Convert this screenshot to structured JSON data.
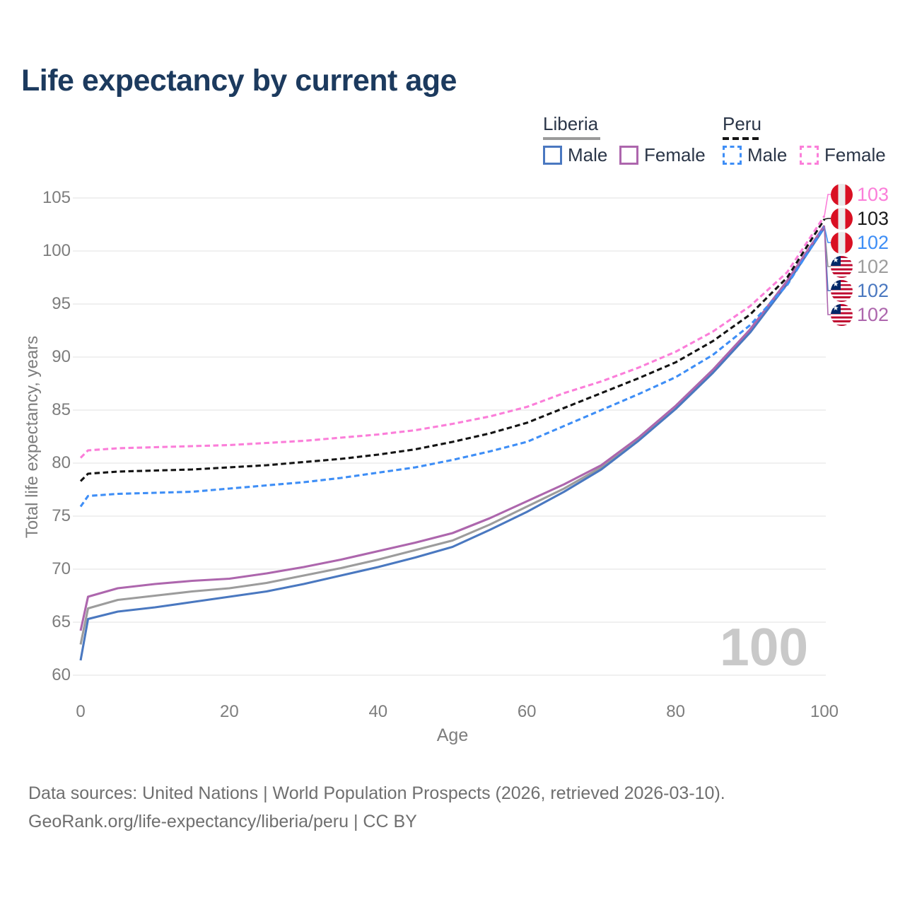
{
  "title": "Life expectancy by current age",
  "legend": {
    "groups": [
      {
        "label": "Liberia",
        "line_style": "solid",
        "underline_color": "#9a9a9a",
        "items": [
          {
            "label": "Male",
            "color": "#4a78c0"
          },
          {
            "label": "Female",
            "color": "#ad66ad"
          }
        ]
      },
      {
        "label": "Peru",
        "line_style": "dashed",
        "underline_color": "#141414",
        "items": [
          {
            "label": "Male",
            "color": "#3e8ef6"
          },
          {
            "label": "Female",
            "color": "#fb7ed9"
          }
        ]
      }
    ]
  },
  "chart_data": {
    "type": "line",
    "title": "Life expectancy by current age",
    "xlabel": "Age",
    "ylabel": "Total life expectancy, years",
    "xlim": [
      0,
      100
    ],
    "ylim": [
      60,
      105
    ],
    "xticks": [
      0,
      20,
      40,
      60,
      80,
      100
    ],
    "yticks": [
      105,
      100,
      95,
      90,
      85,
      80,
      75,
      70,
      65,
      60
    ],
    "grid": "horizontal",
    "legend_position": "top-right",
    "x": [
      0,
      1,
      5,
      10,
      15,
      20,
      25,
      30,
      35,
      40,
      45,
      50,
      55,
      60,
      65,
      70,
      75,
      80,
      85,
      90,
      95,
      100
    ],
    "series": [
      {
        "id": "liberia-both",
        "name": "Liberia Both sexes",
        "country": "Liberia",
        "sex": "Both",
        "color": "#9c9c9c",
        "dash": false,
        "values": [
          62.9,
          66.3,
          67.1,
          67.5,
          67.9,
          68.2,
          68.7,
          69.4,
          70.1,
          70.9,
          71.8,
          72.7,
          74.2,
          75.9,
          77.6,
          79.6,
          82.2,
          85.2,
          88.6,
          92.4,
          97.0,
          102.3
        ]
      },
      {
        "id": "liberia-male",
        "name": "Liberia Male",
        "country": "Liberia",
        "sex": "Male",
        "color": "#4a78c0",
        "dash": false,
        "values": [
          61.4,
          65.3,
          66.0,
          66.4,
          66.9,
          67.4,
          67.9,
          68.6,
          69.4,
          70.2,
          71.1,
          72.1,
          73.7,
          75.4,
          77.3,
          79.4,
          82.1,
          85.1,
          88.5,
          92.3,
          96.9,
          102.2
        ]
      },
      {
        "id": "liberia-female",
        "name": "Liberia Female",
        "country": "Liberia",
        "sex": "Female",
        "color": "#ad66ad",
        "dash": false,
        "values": [
          64.2,
          67.4,
          68.2,
          68.6,
          68.9,
          69.1,
          69.6,
          70.2,
          70.9,
          71.7,
          72.5,
          73.4,
          74.8,
          76.4,
          78.0,
          79.8,
          82.4,
          85.4,
          88.8,
          92.6,
          97.2,
          102.4
        ]
      },
      {
        "id": "peru-male",
        "name": "Peru Male",
        "country": "Peru",
        "sex": "Male",
        "color": "#3e8ef6",
        "dash": true,
        "values": [
          75.9,
          76.9,
          77.1,
          77.2,
          77.3,
          77.6,
          77.9,
          78.2,
          78.6,
          79.1,
          79.6,
          80.3,
          81.1,
          82.0,
          83.5,
          85.0,
          86.5,
          88.1,
          90.2,
          93.0,
          96.8,
          102.3
        ]
      },
      {
        "id": "peru-both",
        "name": "Peru Both sexes",
        "country": "Peru",
        "sex": "Both",
        "color": "#141414",
        "dash": true,
        "values": [
          78.3,
          79.0,
          79.2,
          79.3,
          79.4,
          79.6,
          79.8,
          80.1,
          80.4,
          80.8,
          81.3,
          82.0,
          82.8,
          83.8,
          85.2,
          86.6,
          88.0,
          89.5,
          91.5,
          94.0,
          97.5,
          103.0
        ]
      },
      {
        "id": "peru-female",
        "name": "Peru Female",
        "country": "Peru",
        "sex": "Female",
        "color": "#fb7ed9",
        "dash": true,
        "values": [
          80.5,
          81.2,
          81.4,
          81.5,
          81.6,
          81.7,
          81.9,
          82.1,
          82.4,
          82.7,
          83.1,
          83.7,
          84.4,
          85.3,
          86.6,
          87.7,
          89.0,
          90.5,
          92.4,
          94.8,
          98.0,
          103.3
        ]
      }
    ]
  },
  "end_labels": [
    {
      "label": "103",
      "color": "#fb7ed9",
      "flag": "peru",
      "series": "peru-female"
    },
    {
      "label": "103",
      "color": "#1a1a1a",
      "flag": "peru",
      "series": "peru-both"
    },
    {
      "label": "102",
      "color": "#3e8ef6",
      "flag": "peru",
      "series": "peru-male"
    },
    {
      "label": "102",
      "color": "#9c9c9c",
      "flag": "liberia",
      "series": "liberia-both"
    },
    {
      "label": "102",
      "color": "#4a78c0",
      "flag": "liberia",
      "series": "liberia-male"
    },
    {
      "label": "102",
      "color": "#ad66ad",
      "flag": "liberia",
      "series": "liberia-female"
    }
  ],
  "watermark": "100",
  "footer": {
    "line1": "Data sources: United Nations | World Population Prospects (2026, retrieved 2026-03-10).",
    "line2": "GeoRank.org/life-expectancy/liberia/peru | CC BY"
  }
}
